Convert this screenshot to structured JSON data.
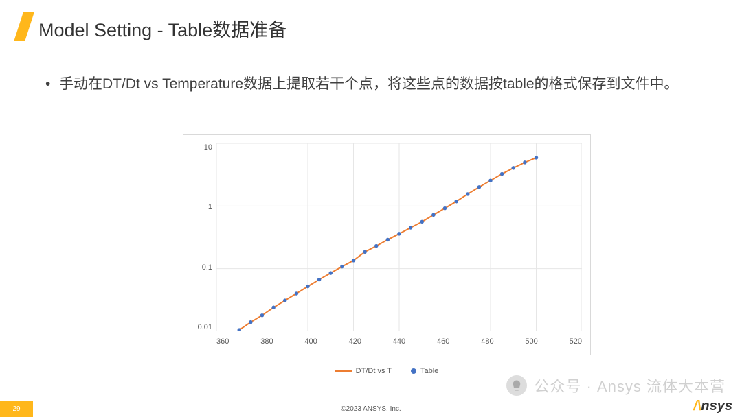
{
  "title": "Model Setting - Table数据准备",
  "bullet_text": "手动在DT/Dt vs Temperature数据上提取若干个点，将这些点的数据按table的格式保存到文件中。",
  "chart": {
    "type": "line+scatter",
    "x_ticks": [
      360,
      380,
      400,
      420,
      440,
      460,
      480,
      500,
      520
    ],
    "y_ticks": [
      0.01,
      0.1,
      1,
      10
    ],
    "y_tick_labels": [
      "0.01",
      "0.1",
      "1",
      "10"
    ],
    "xlim": [
      360,
      520
    ],
    "ylim": [
      0.01,
      10
    ],
    "yscale": "log",
    "background_color": "#ffffff",
    "border_color": "#d9d9d9",
    "grid_color": "#e6e6e6",
    "tick_fontsize": 11,
    "tick_color": "#595959",
    "series": [
      {
        "name": "DT/Dt vs T",
        "kind": "line",
        "color": "#ed7d31",
        "line_width": 2,
        "x": [
          370,
          375,
          380,
          385,
          390,
          395,
          400,
          405,
          410,
          415,
          420,
          425,
          430,
          435,
          440,
          445,
          450,
          455,
          460,
          465,
          470,
          475,
          480,
          485,
          490,
          495,
          500
        ],
        "y": [
          0.0105,
          0.014,
          0.018,
          0.024,
          0.031,
          0.04,
          0.052,
          0.067,
          0.085,
          0.108,
          0.135,
          0.185,
          0.23,
          0.29,
          0.36,
          0.45,
          0.56,
          0.72,
          0.92,
          1.18,
          1.55,
          2.0,
          2.55,
          3.25,
          4.05,
          4.95,
          5.9
        ]
      },
      {
        "name": "Table",
        "kind": "scatter",
        "color": "#4472c4",
        "marker_size": 5.5,
        "x": [
          370,
          375,
          380,
          385,
          390,
          395,
          400,
          405,
          410,
          415,
          420,
          425,
          430,
          435,
          440,
          445,
          450,
          455,
          460,
          465,
          470,
          475,
          480,
          485,
          490,
          495,
          500
        ],
        "y": [
          0.0105,
          0.014,
          0.018,
          0.024,
          0.031,
          0.04,
          0.052,
          0.067,
          0.085,
          0.108,
          0.135,
          0.185,
          0.23,
          0.29,
          0.36,
          0.45,
          0.56,
          0.72,
          0.92,
          1.18,
          1.55,
          2.0,
          2.55,
          3.25,
          4.05,
          4.95,
          5.9
        ]
      }
    ],
    "legend": {
      "position": "bottom",
      "items": [
        {
          "label": "DT/Dt vs T",
          "swatch": "line",
          "color": "#ed7d31"
        },
        {
          "label": "Table",
          "swatch": "dot",
          "color": "#4472c4"
        }
      ],
      "fontsize": 11,
      "color": "#595959"
    }
  },
  "footer": {
    "page_number": "29",
    "copyright": "©2023 ANSYS, Inc.",
    "logo_text": "nsys"
  },
  "watermark": "公众号 · Ansys 流体大本营"
}
